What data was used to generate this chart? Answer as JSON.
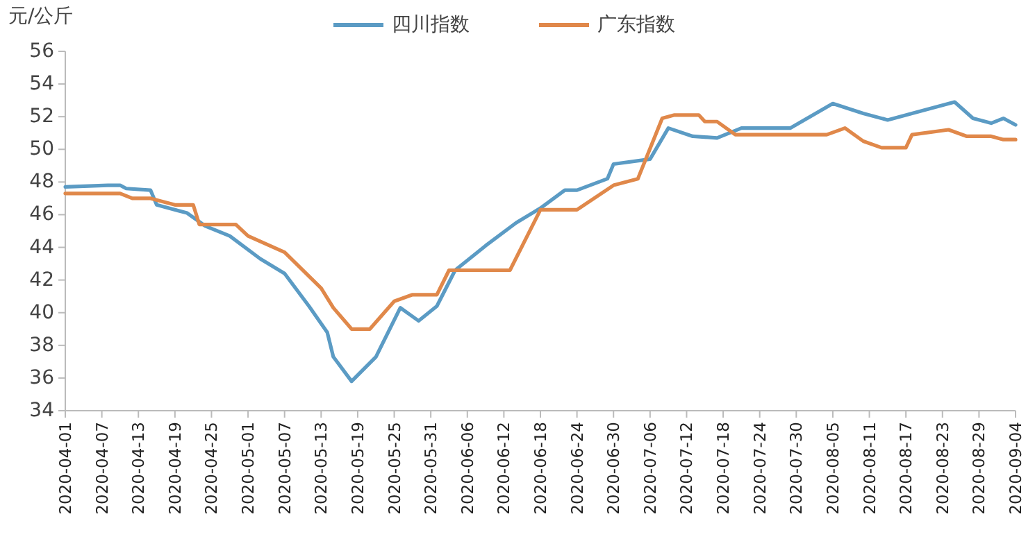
{
  "chart_data": {
    "type": "line",
    "ylabel": "元/公斤",
    "legend": "top",
    "grid": false,
    "marker": "none",
    "line_style": "solid",
    "xlim": [
      "2020-04-01",
      "2020-09-04"
    ],
    "ylim": [
      34,
      56
    ],
    "yticks": [
      34,
      36,
      38,
      40,
      42,
      44,
      46,
      48,
      50,
      52,
      54,
      56
    ],
    "xticks": [
      "2020-04-01",
      "2020-04-07",
      "2020-04-13",
      "2020-04-19",
      "2020-04-25",
      "2020-05-01",
      "2020-05-07",
      "2020-05-13",
      "2020-05-19",
      "2020-05-25",
      "2020-05-31",
      "2020-06-06",
      "2020-06-12",
      "2020-06-18",
      "2020-06-24",
      "2020-06-30",
      "2020-07-06",
      "2020-07-12",
      "2020-07-18",
      "2020-07-24",
      "2020-07-30",
      "2020-08-05",
      "2020-08-11",
      "2020-08-17",
      "2020-08-23",
      "2020-08-29",
      "2020-09-04"
    ],
    "series": [
      {
        "name": "四川指数",
        "color": "#5b9bc4",
        "x": [
          "2020-04-01",
          "2020-04-08",
          "2020-04-10",
          "2020-04-11",
          "2020-04-15",
          "2020-04-16",
          "2020-04-21",
          "2020-04-24",
          "2020-04-28",
          "2020-05-03",
          "2020-05-07",
          "2020-05-11",
          "2020-05-14",
          "2020-05-15",
          "2020-05-18",
          "2020-05-22",
          "2020-05-26",
          "2020-05-29",
          "2020-06-01",
          "2020-06-04",
          "2020-06-09",
          "2020-06-14",
          "2020-06-18",
          "2020-06-22",
          "2020-06-24",
          "2020-06-29",
          "2020-06-30",
          "2020-07-06",
          "2020-07-09",
          "2020-07-13",
          "2020-07-17",
          "2020-07-21",
          "2020-07-29",
          "2020-08-05",
          "2020-08-10",
          "2020-08-14",
          "2020-08-18",
          "2020-08-25",
          "2020-08-28",
          "2020-08-31",
          "2020-09-02",
          "2020-09-04"
        ],
        "values": [
          47.7,
          47.8,
          47.8,
          47.6,
          47.5,
          46.6,
          46.1,
          45.3,
          44.7,
          43.3,
          42.4,
          40.4,
          38.8,
          37.3,
          35.8,
          37.3,
          40.3,
          39.5,
          40.4,
          42.6,
          44.1,
          45.5,
          46.4,
          47.5,
          47.5,
          48.2,
          49.1,
          49.4,
          51.3,
          50.8,
          50.7,
          51.3,
          51.3,
          52.8,
          52.2,
          51.8,
          52.2,
          52.9,
          51.9,
          51.6,
          51.9,
          51.5
        ]
      },
      {
        "name": "广东指数",
        "color": "#e0884a",
        "x": [
          "2020-04-01",
          "2020-04-10",
          "2020-04-12",
          "2020-04-15",
          "2020-04-19",
          "2020-04-22",
          "2020-04-23",
          "2020-04-29",
          "2020-05-01",
          "2020-05-07",
          "2020-05-13",
          "2020-05-15",
          "2020-05-18",
          "2020-05-21",
          "2020-05-25",
          "2020-05-28",
          "2020-06-01",
          "2020-06-03",
          "2020-06-13",
          "2020-06-18",
          "2020-06-24",
          "2020-06-30",
          "2020-07-04",
          "2020-07-08",
          "2020-07-10",
          "2020-07-14",
          "2020-07-15",
          "2020-07-17",
          "2020-07-20",
          "2020-08-04",
          "2020-08-07",
          "2020-08-10",
          "2020-08-13",
          "2020-08-17",
          "2020-08-18",
          "2020-08-24",
          "2020-08-27",
          "2020-08-31",
          "2020-09-02",
          "2020-09-04"
        ],
        "values": [
          47.3,
          47.3,
          47.0,
          47.0,
          46.6,
          46.6,
          45.4,
          45.4,
          44.7,
          43.7,
          41.5,
          40.3,
          39.0,
          39.0,
          40.7,
          41.1,
          41.1,
          42.6,
          42.6,
          46.3,
          46.3,
          47.8,
          48.2,
          51.9,
          52.1,
          52.1,
          51.7,
          51.7,
          50.9,
          50.9,
          51.3,
          50.5,
          50.1,
          50.1,
          50.9,
          51.2,
          50.8,
          50.8,
          50.6,
          50.6
        ]
      }
    ]
  }
}
